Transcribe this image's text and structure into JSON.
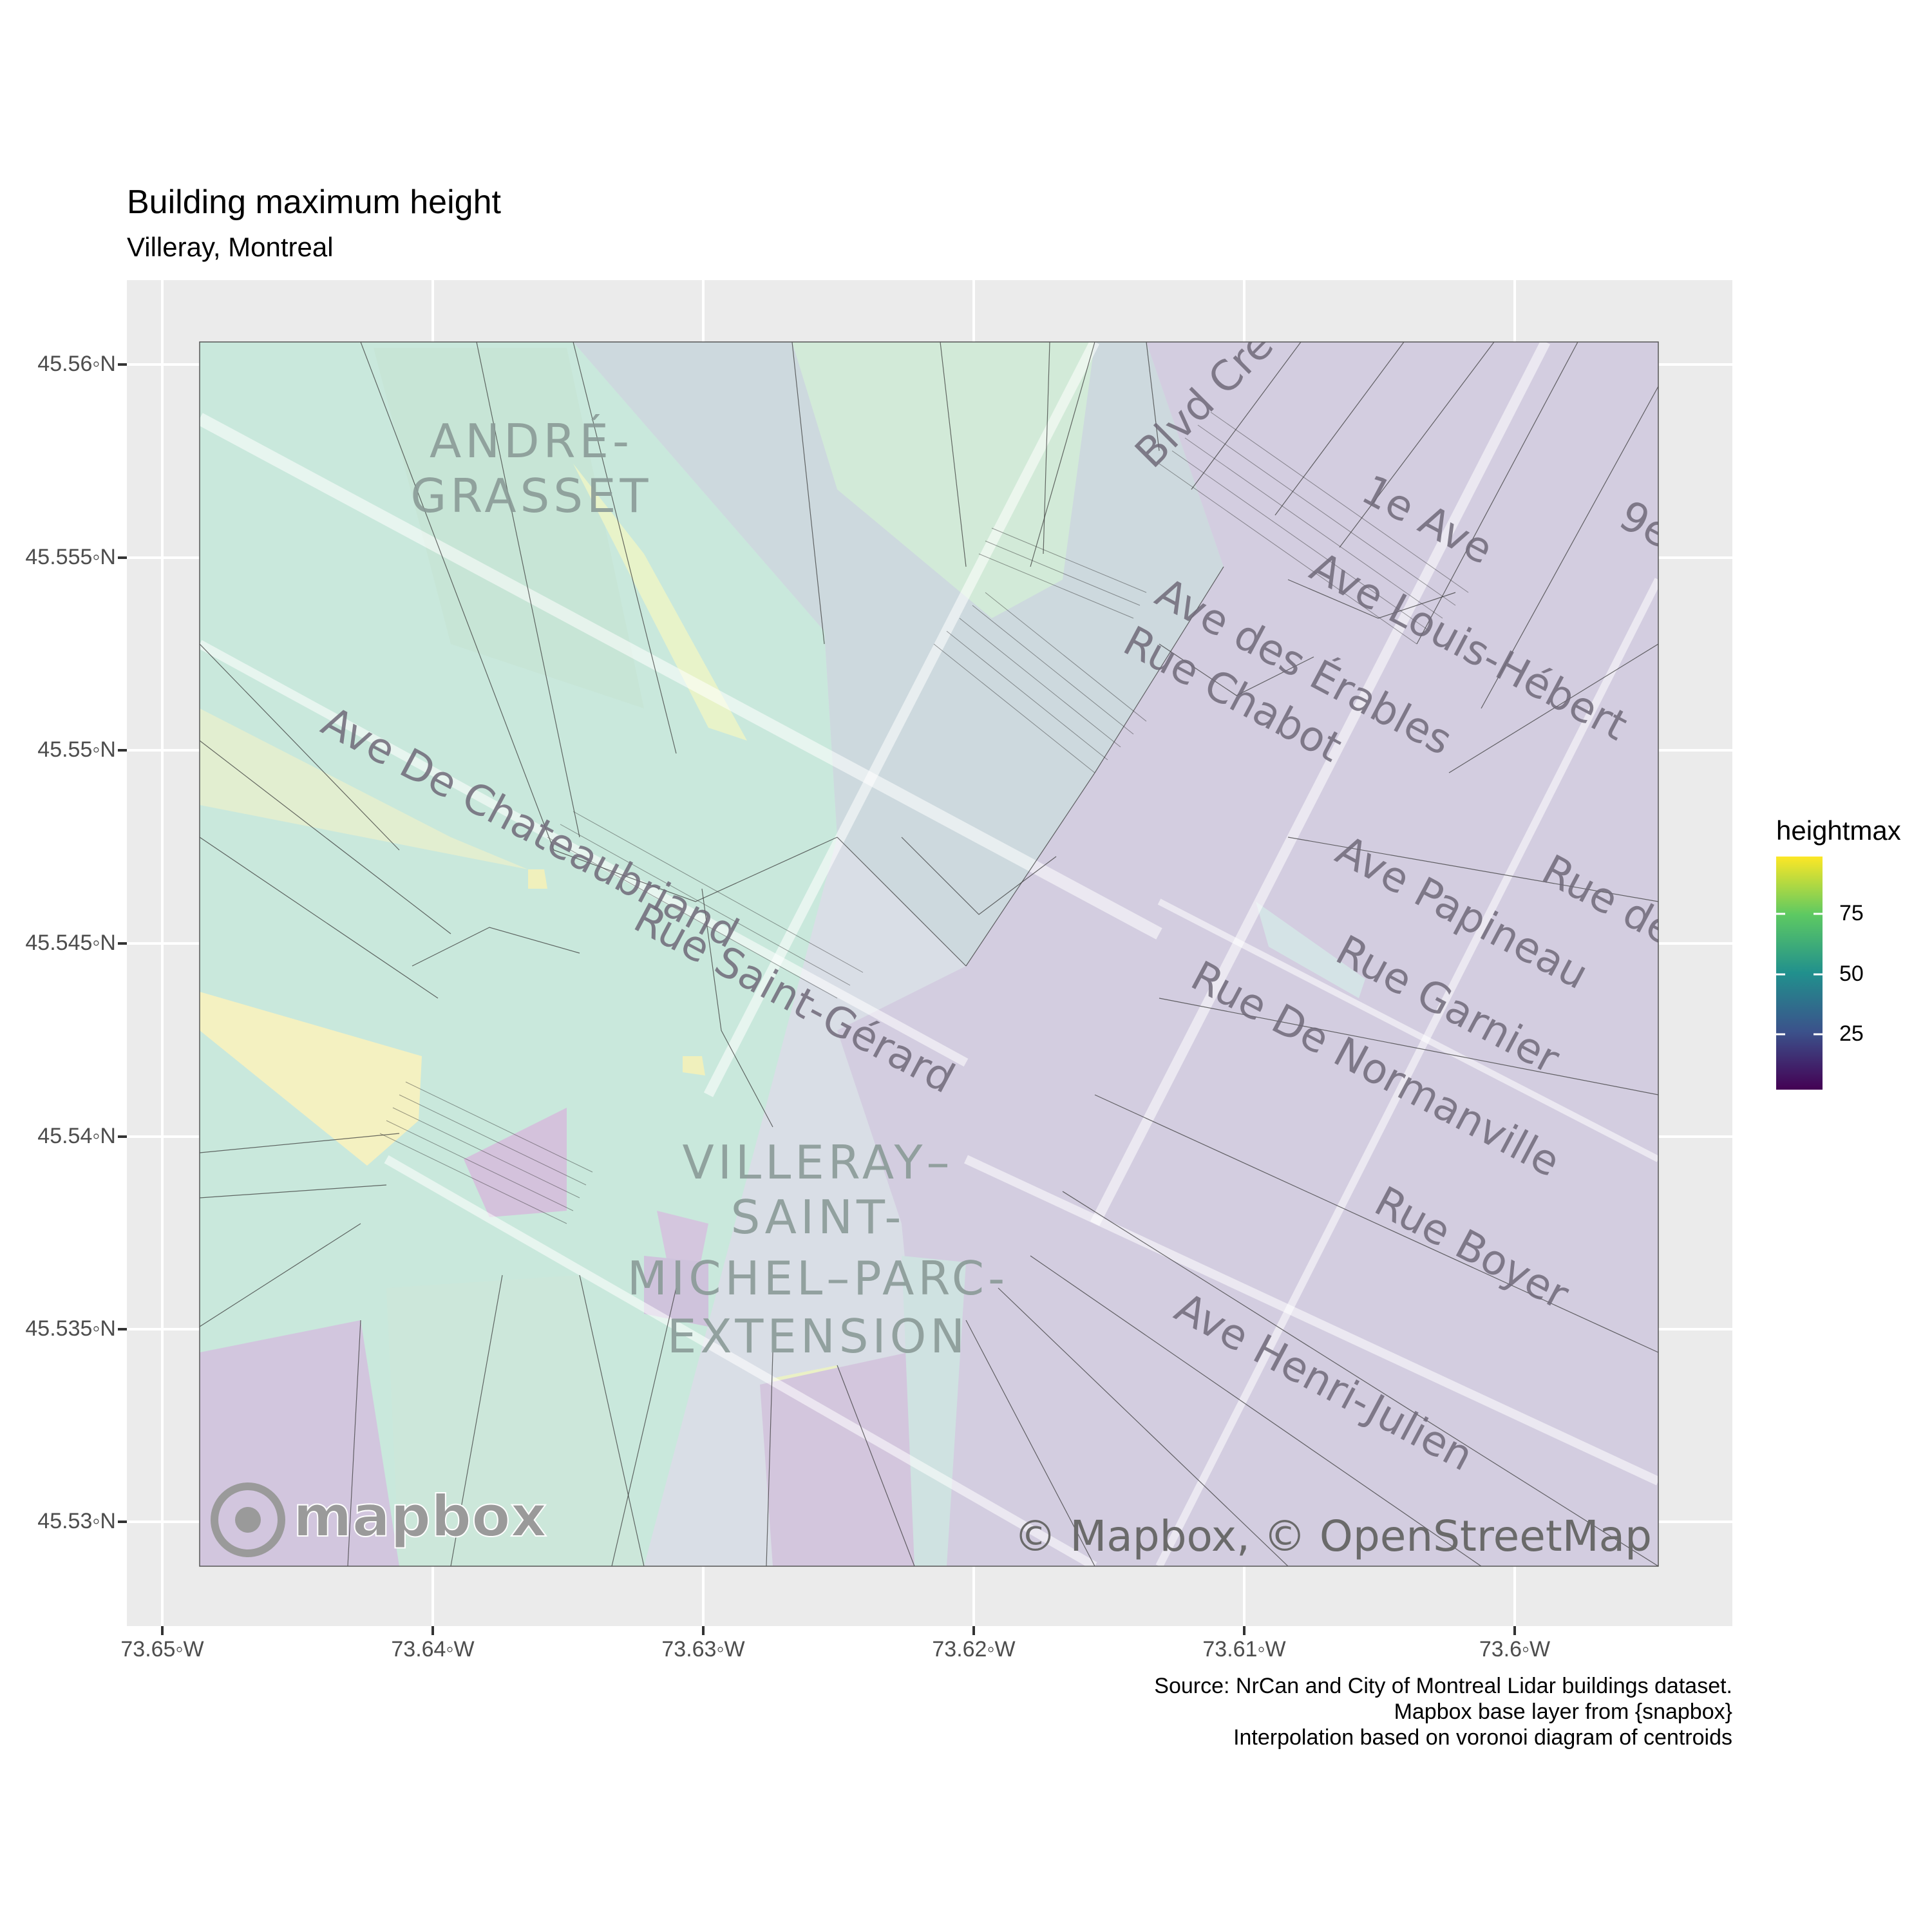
{
  "title": "Building maximum height",
  "subtitle": "Villeray, Montreal",
  "caption": [
    "Source: NrCan and City of Montreal Lidar buildings dataset.",
    "Mapbox base layer from {snapbox}",
    "Interpolation based on voronoi diagram of centroids"
  ],
  "axes": {
    "x": {
      "ticks": [
        "73.65◦W",
        "73.64◦W",
        "73.63◦W",
        "73.62◦W",
        "73.61◦W",
        "73.6◦W"
      ]
    },
    "y": {
      "ticks": [
        "45.56◦N",
        "45.555◦N",
        "45.55◦N",
        "45.545◦N",
        "45.54◦N",
        "45.535◦N",
        "45.53◦N"
      ]
    }
  },
  "legend": {
    "title": "heightmax",
    "labels": [
      "75",
      "50",
      "25"
    ],
    "palette": "viridis",
    "colors": [
      "#440154",
      "#3b528b",
      "#21908d",
      "#5dc962",
      "#fde725"
    ]
  },
  "basemap": {
    "neighbourhood_labels": [
      "ANDRÉ-",
      "GRASSET",
      "VILLERAY–",
      "SAINT-",
      "MICHEL–PARC-",
      "EXTENSION"
    ],
    "street_labels": [
      "Blvd Cré",
      "1e Ave",
      "9e",
      "Ave Louis-Hébert",
      "Ave des Érables",
      "Rue Chabot",
      "Ave De Chateaubriand",
      "Rue Saint-Gérard",
      "Ave Papineau",
      "Rue de",
      "Rue Garnier",
      "Rue De Normanville",
      "Rue Boyer",
      "Ave Henri-Julien"
    ],
    "mapbox_logo": "mapbox",
    "attribution": "© Mapbox, © OpenStreetMap"
  }
}
